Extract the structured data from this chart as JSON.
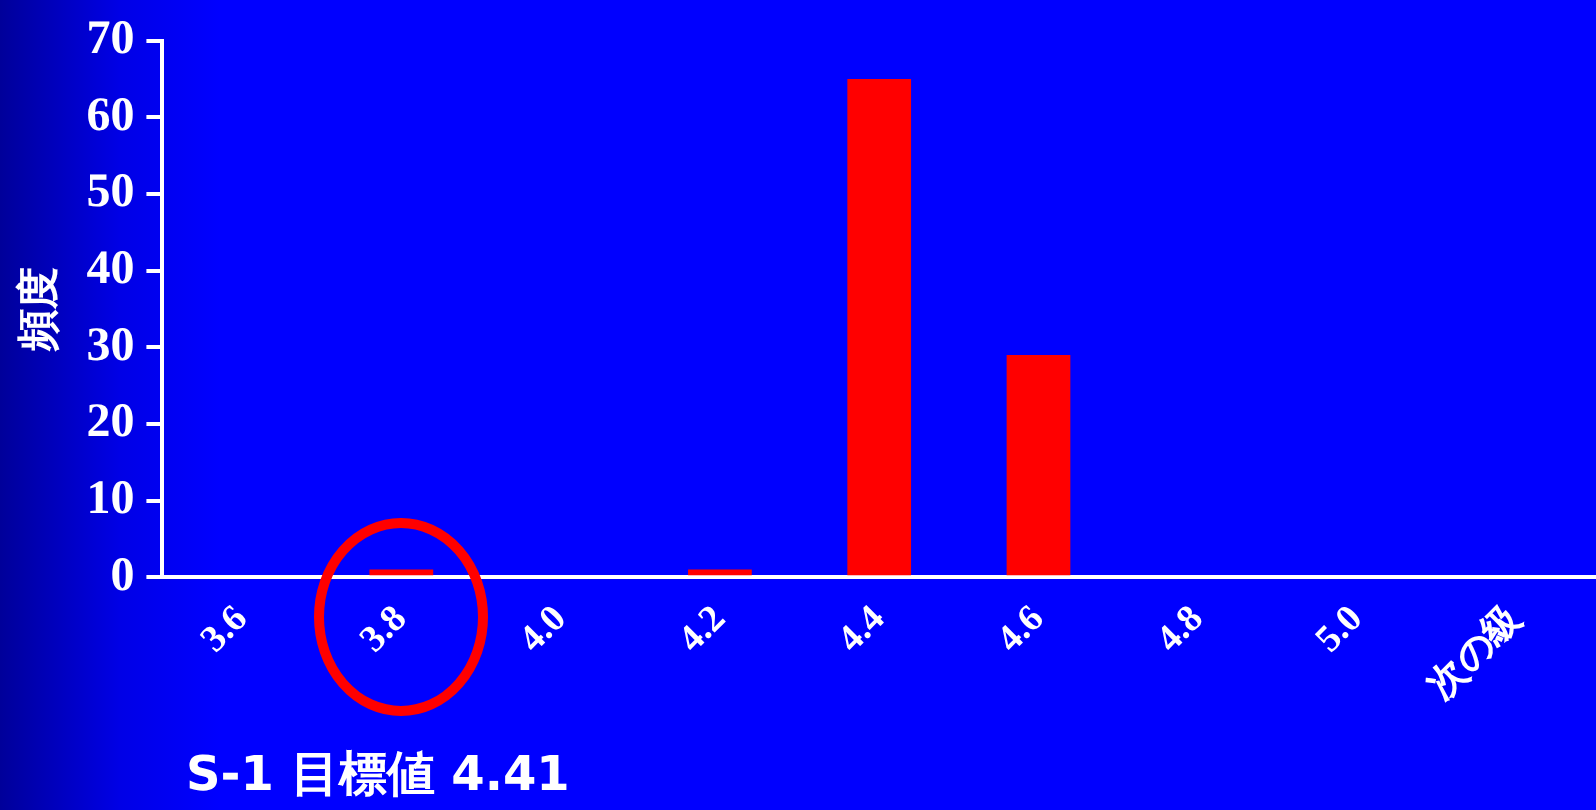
{
  "chart_data": {
    "type": "bar",
    "categories": [
      "3.6",
      "3.8",
      "4.0",
      "4.2",
      "4.4",
      "4.6",
      "4.8",
      "5.0",
      "次の級"
    ],
    "values": [
      0,
      1,
      0,
      1,
      65,
      29,
      0,
      0,
      0
    ],
    "color": "#ff0000",
    "ylabel": "頻度",
    "ylim": [
      0,
      70
    ],
    "yticks": [
      0,
      10,
      20,
      30,
      40,
      50,
      60,
      70
    ],
    "grid": false,
    "legend": false,
    "annotations": [
      "S-1 目標値 4.41"
    ]
  }
}
